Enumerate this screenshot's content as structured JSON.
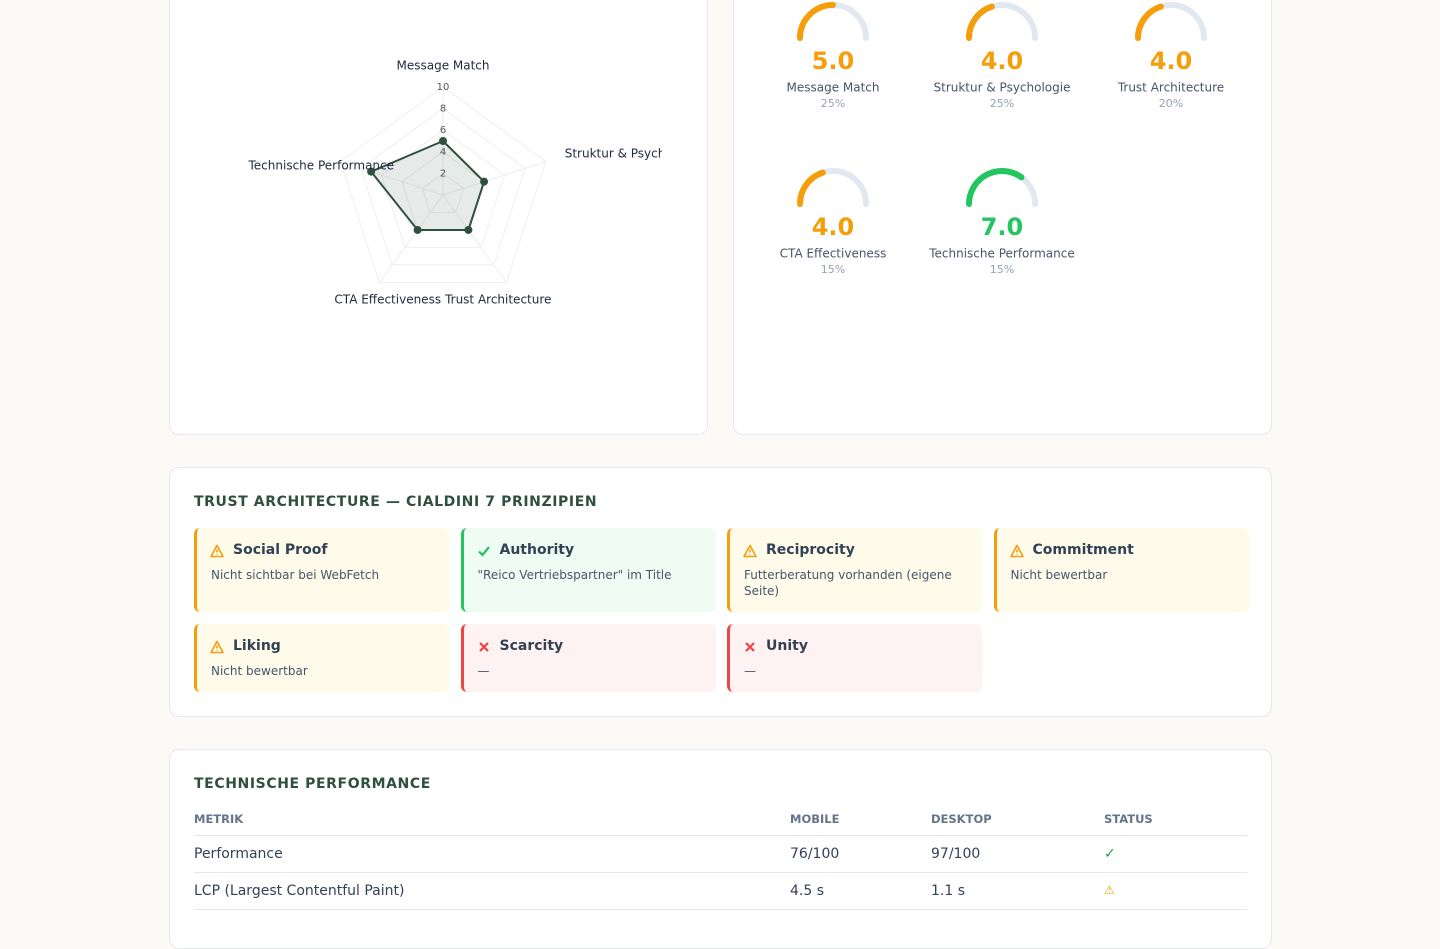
{
  "radar": {
    "type": "radar",
    "categories": [
      "Message Match",
      "Struktur & Psychologie",
      "Trust Architecture",
      "CTA Effectiveness",
      "Technische Performance"
    ],
    "values": [
      5,
      4,
      4,
      4,
      7
    ],
    "rlim": [
      0,
      10
    ],
    "rticks": [
      2,
      4,
      6,
      8,
      10
    ],
    "color": "#2f4f3f"
  },
  "gauges": {
    "type": "gauge",
    "lim": [
      0,
      10
    ],
    "track_color": "#e2e8f0",
    "items": [
      {
        "name": "Message Match",
        "value": 5,
        "value_label": "5.0",
        "weight": "25%",
        "color": "#f59e0b"
      },
      {
        "name": "Struktur & Psychologie",
        "value": 4,
        "value_label": "4.0",
        "weight": "25%",
        "color": "#f59e0b"
      },
      {
        "name": "Trust Architecture",
        "value": 4,
        "value_label": "4.0",
        "weight": "20%",
        "color": "#f59e0b"
      },
      {
        "name": "CTA Effectiveness",
        "value": 4,
        "value_label": "4.0",
        "weight": "15%",
        "color": "#f59e0b"
      },
      {
        "name": "Technische Performance",
        "value": 7,
        "value_label": "7.0",
        "weight": "15%",
        "color": "#22c55e"
      }
    ]
  },
  "trust": {
    "title": "TRUST ARCHITECTURE — CIALDINI 7 PRINZIPIEN",
    "cards": [
      {
        "status": "warn",
        "name": "Social Proof",
        "text": "Nicht sichtbar bei WebFetch"
      },
      {
        "status": "ok",
        "name": "Authority",
        "text": "\"Reico Vertriebspartner\" im Title"
      },
      {
        "status": "warn",
        "name": "Reciprocity",
        "text": "Futterberatung vorhanden (eigene Seite)"
      },
      {
        "status": "warn",
        "name": "Commitment",
        "text": "Nicht bewertbar"
      },
      {
        "status": "warn",
        "name": "Liking",
        "text": "Nicht bewertbar"
      },
      {
        "status": "bad",
        "name": "Scarcity",
        "text": "—"
      },
      {
        "status": "bad",
        "name": "Unity",
        "text": "—"
      }
    ]
  },
  "tech": {
    "title": "TECHNISCHE PERFORMANCE",
    "header": [
      "METRIK",
      "MOBILE",
      "DESKTOP",
      "STATUS"
    ],
    "rows": [
      [
        "Performance",
        "76/100",
        "97/100",
        "✓"
      ],
      [
        "LCP (Largest Contentful Paint)",
        "4.5 s",
        "1.1 s",
        "⚠"
      ]
    ]
  }
}
